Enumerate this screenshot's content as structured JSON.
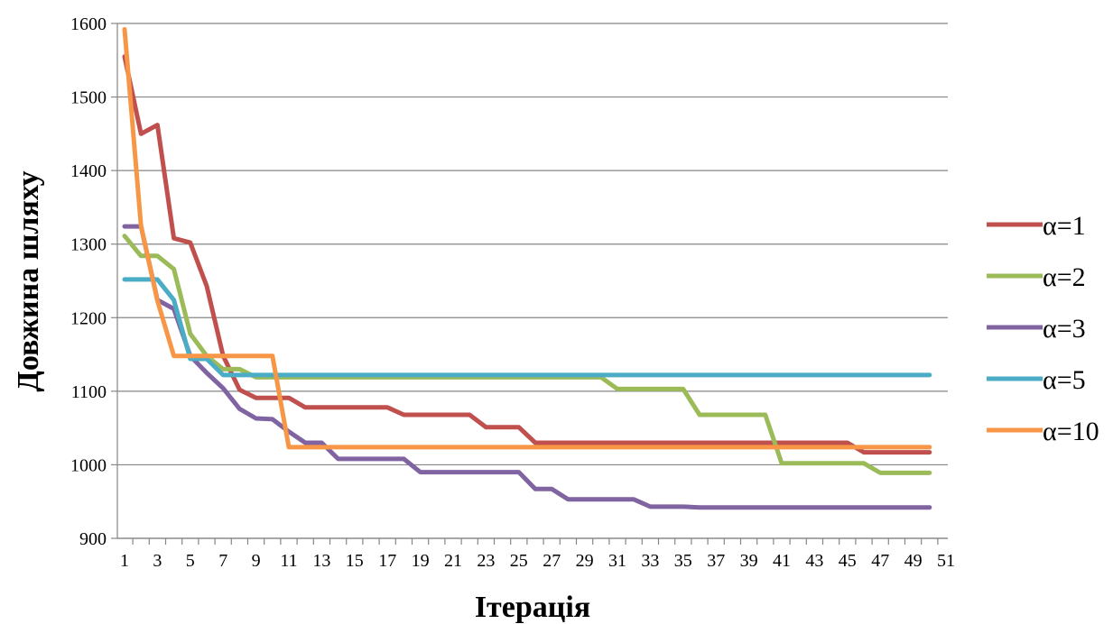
{
  "chart_data": {
    "type": "line",
    "title": "",
    "xlabel": "Ітерація",
    "ylabel": "Довжина шляху",
    "x": [
      1,
      2,
      3,
      4,
      5,
      6,
      7,
      8,
      9,
      10,
      11,
      12,
      13,
      14,
      15,
      16,
      17,
      18,
      19,
      20,
      21,
      22,
      23,
      24,
      25,
      26,
      27,
      28,
      29,
      30,
      31,
      32,
      33,
      34,
      35,
      36,
      37,
      38,
      39,
      40,
      41,
      42,
      43,
      44,
      45,
      46,
      47,
      48,
      49,
      50
    ],
    "xticks": [
      "1",
      "3",
      "5",
      "7",
      "9",
      "11",
      "13",
      "15",
      "17",
      "19",
      "21",
      "23",
      "25",
      "27",
      "29",
      "31",
      "33",
      "35",
      "37",
      "39",
      "41",
      "43",
      "45",
      "47",
      "49",
      "51"
    ],
    "xlim": [
      1,
      51
    ],
    "ylim": [
      900,
      1600
    ],
    "yticks": [
      "900",
      "1000",
      "1100",
      "1200",
      "1300",
      "1400",
      "1500",
      "1600"
    ],
    "grid": true,
    "legend_position": "right",
    "series": [
      {
        "name": "α=1",
        "color": "#c0504d",
        "values": [
          1555,
          1450,
          1462,
          1308,
          1302,
          1243,
          1148,
          1102,
          1091,
          1091,
          1091,
          1078,
          1078,
          1078,
          1078,
          1078,
          1078,
          1068,
          1068,
          1068,
          1068,
          1068,
          1051,
          1051,
          1051,
          1030,
          1030,
          1030,
          1030,
          1030,
          1030,
          1030,
          1030,
          1030,
          1030,
          1030,
          1030,
          1030,
          1030,
          1030,
          1030,
          1030,
          1030,
          1030,
          1030,
          1017,
          1017,
          1017,
          1017,
          1017
        ]
      },
      {
        "name": "α=2",
        "color": "#9bbb59",
        "values": [
          1311,
          1284,
          1284,
          1266,
          1178,
          1148,
          1130,
          1130,
          1119,
          1119,
          1119,
          1119,
          1119,
          1119,
          1119,
          1119,
          1119,
          1119,
          1119,
          1119,
          1119,
          1119,
          1119,
          1119,
          1119,
          1119,
          1119,
          1119,
          1119,
          1119,
          1103,
          1103,
          1103,
          1103,
          1103,
          1068,
          1068,
          1068,
          1068,
          1068,
          1002,
          1002,
          1002,
          1002,
          1002,
          1002,
          989,
          989,
          989,
          989
        ]
      },
      {
        "name": "α=3",
        "color": "#8064a2",
        "values": [
          1324,
          1324,
          1224,
          1212,
          1148,
          1125,
          1104,
          1076,
          1063,
          1062,
          1045,
          1030,
          1030,
          1008,
          1008,
          1008,
          1008,
          1008,
          990,
          990,
          990,
          990,
          990,
          990,
          990,
          967,
          967,
          953,
          953,
          953,
          953,
          953,
          943,
          943,
          943,
          942,
          942,
          942,
          942,
          942,
          942,
          942,
          942,
          942,
          942,
          942,
          942,
          942,
          942,
          942
        ]
      },
      {
        "name": "α=5",
        "color": "#4bacc6",
        "values": [
          1252,
          1252,
          1252,
          1224,
          1144,
          1144,
          1122,
          1122,
          1122,
          1122,
          1122,
          1122,
          1122,
          1122,
          1122,
          1122,
          1122,
          1122,
          1122,
          1122,
          1122,
          1122,
          1122,
          1122,
          1122,
          1122,
          1122,
          1122,
          1122,
          1122,
          1122,
          1122,
          1122,
          1122,
          1122,
          1122,
          1122,
          1122,
          1122,
          1122,
          1122,
          1122,
          1122,
          1122,
          1122,
          1122,
          1122,
          1122,
          1122,
          1122
        ]
      },
      {
        "name": "α=10",
        "color": "#f79646",
        "values": [
          1592,
          1325,
          1223,
          1148,
          1148,
          1148,
          1148,
          1148,
          1148,
          1148,
          1024,
          1024,
          1024,
          1024,
          1024,
          1024,
          1024,
          1024,
          1024,
          1024,
          1024,
          1024,
          1024,
          1024,
          1024,
          1024,
          1024,
          1024,
          1024,
          1024,
          1024,
          1024,
          1024,
          1024,
          1024,
          1024,
          1024,
          1024,
          1024,
          1024,
          1024,
          1024,
          1024,
          1024,
          1024,
          1024,
          1024,
          1024,
          1024,
          1024
        ]
      }
    ]
  }
}
